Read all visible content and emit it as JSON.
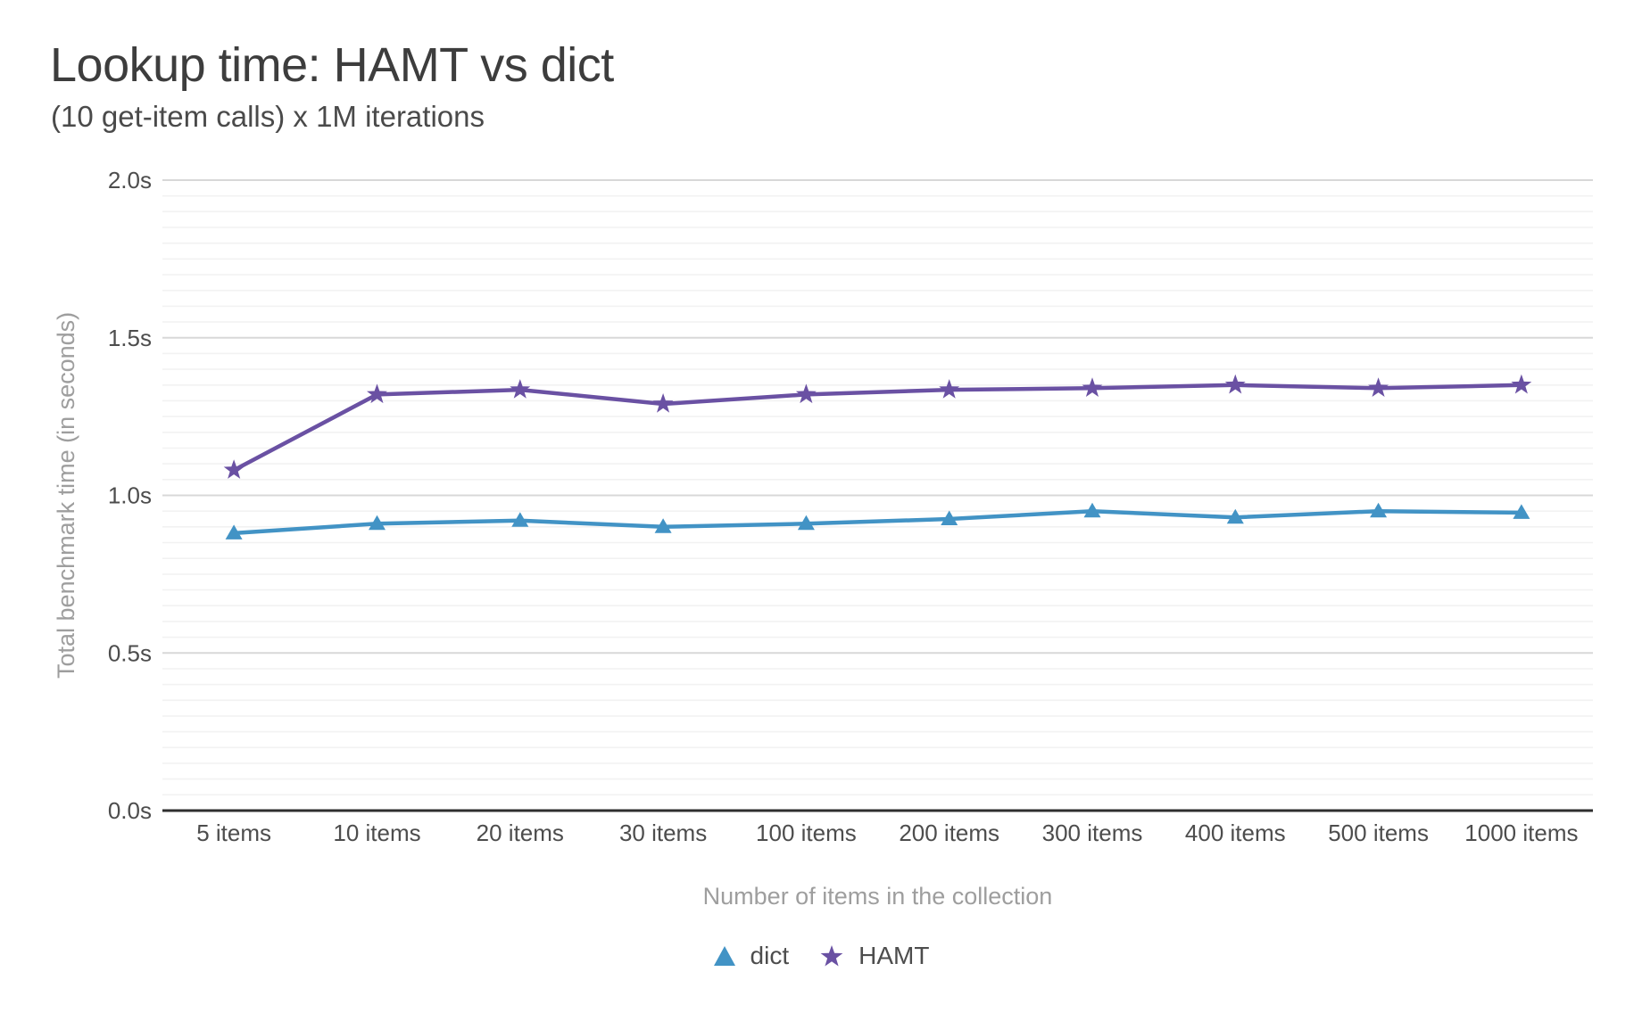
{
  "chart_data": {
    "type": "line",
    "title": "Lookup time: HAMT vs dict",
    "subtitle": "(10 get-item calls) x 1M iterations",
    "xlabel": "Number of items in the collection",
    "ylabel": "Total benchmark time (in seconds)",
    "categories": [
      "5 items",
      "10 items",
      "20 items",
      "30 items",
      "100 items",
      "200 items",
      "300 items",
      "400 items",
      "500 items",
      "1000 items"
    ],
    "series": [
      {
        "name": "dict",
        "marker": "triangle",
        "color": "#4293C5",
        "values": [
          0.88,
          0.91,
          0.92,
          0.9,
          0.91,
          0.925,
          0.95,
          0.93,
          0.95,
          0.945
        ]
      },
      {
        "name": "HAMT",
        "marker": "star",
        "color": "#6A51A3",
        "values": [
          1.08,
          1.32,
          1.335,
          1.29,
          1.32,
          1.335,
          1.34,
          1.35,
          1.34,
          1.35
        ]
      }
    ],
    "ylim": [
      0,
      2
    ],
    "y_ticks": [
      {
        "value": 0.0,
        "label": "0.0s"
      },
      {
        "value": 0.5,
        "label": "0.5s"
      },
      {
        "value": 1.0,
        "label": "1.0s"
      },
      {
        "value": 1.5,
        "label": "1.5s"
      },
      {
        "value": 2.0,
        "label": "2.0s"
      }
    ],
    "y_minor_step": 0.05,
    "grid": "on",
    "legend_position": "bottom",
    "colors": {
      "background": "#ffffff",
      "grid_major": "#d8d8d8",
      "grid_minor": "#f2f2f2",
      "axis_line": "#2e2e2e",
      "tick_label": "#4d4d4d",
      "axis_title": "#9e9e9e",
      "title": "#3d3d3d",
      "subtitle": "#4a4a4a"
    }
  }
}
